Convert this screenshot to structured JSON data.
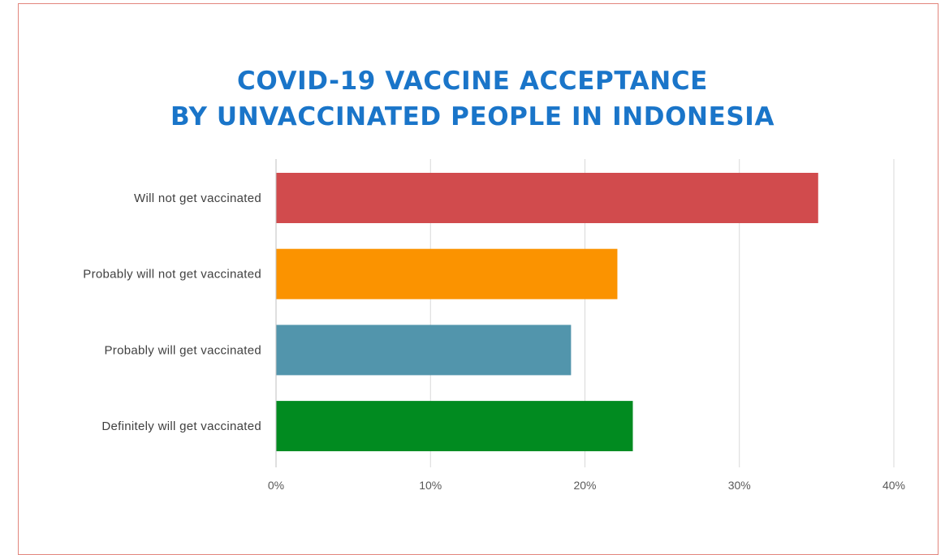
{
  "title": {
    "line1": "COVID-19 VACCINE ACCEPTANCE",
    "line2": "BY UNVACCINATED PEOPLE IN INDONESIA"
  },
  "colors": {
    "title": "#1a75c9",
    "frame": "#e2867d",
    "grid": "#d9d9d9",
    "axis": "#bfbfbf"
  },
  "chart_data": {
    "type": "bar",
    "orientation": "horizontal",
    "title": "COVID-19 VACCINE ACCEPTANCE BY UNVACCINATED PEOPLE IN INDONESIA",
    "xlabel": "",
    "ylabel": "",
    "xlim": [
      0,
      40
    ],
    "x_ticks": [
      0,
      10,
      20,
      30,
      40
    ],
    "x_tick_labels": [
      "0%",
      "10%",
      "20%",
      "30%",
      "40%"
    ],
    "grid": "vertical",
    "legend": "none",
    "categories": [
      "Will not get vaccinated",
      "Probably will not get vaccinated",
      "Probably will get vaccinated",
      "Definitely will get vaccinated"
    ],
    "values": [
      35.1,
      22.1,
      19.1,
      23.1
    ],
    "bar_colors": [
      "#d14b4d",
      "#fb9300",
      "#5295ac",
      "#018b20"
    ]
  }
}
